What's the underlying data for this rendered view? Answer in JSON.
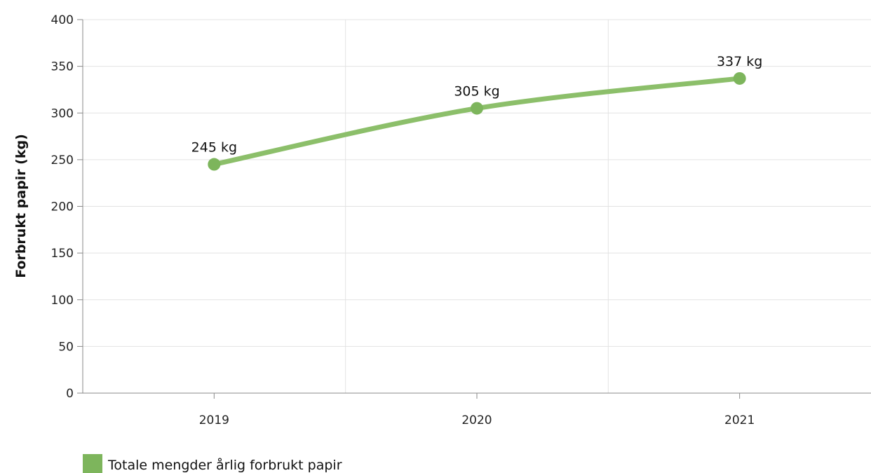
{
  "chart_data": {
    "type": "line",
    "ylabel": "Forbrukt papir (kg)",
    "xlabel": "",
    "categories": [
      "2019",
      "2020",
      "2021"
    ],
    "ylim": [
      0,
      400
    ],
    "yticks": [
      "0",
      "50",
      "100",
      "150",
      "200",
      "250",
      "300",
      "350",
      "400"
    ],
    "grid": true,
    "series": [
      {
        "name": "Totale mengder årlig forbrukt papir",
        "values": [
          245,
          305,
          337
        ],
        "data_labels": [
          "245 kg",
          "305 kg",
          "337 kg"
        ],
        "color": "#8cbf6a",
        "marker_color": "#7db55c"
      }
    ],
    "legend": {
      "position": "bottom-left"
    }
  }
}
